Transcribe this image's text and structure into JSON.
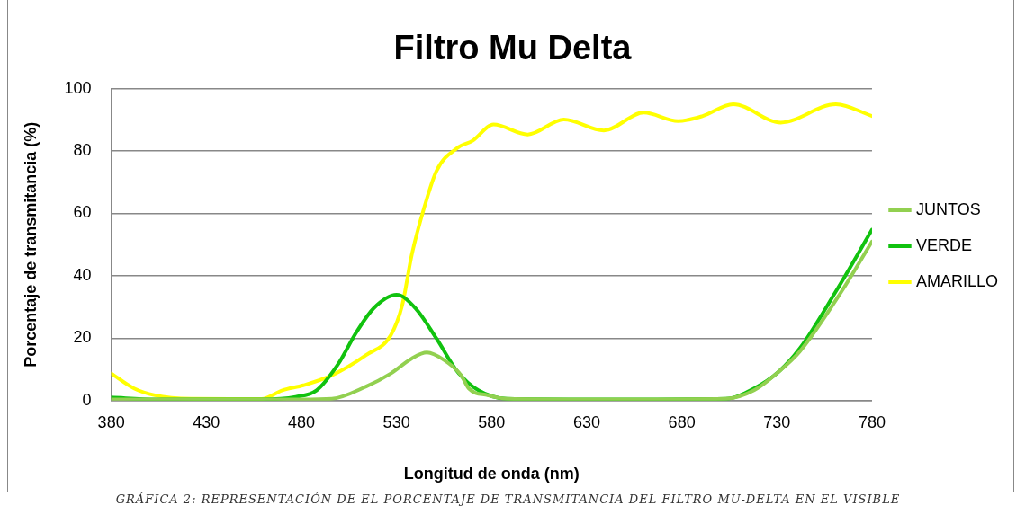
{
  "chart_data": {
    "type": "line",
    "title": "Filtro Mu Delta",
    "xlabel": "Longitud de onda (nm)",
    "ylabel": "Porcentaje de transmitancia (%)",
    "xlim": [
      380,
      780
    ],
    "xticks": [
      380,
      430,
      480,
      530,
      580,
      630,
      680,
      730,
      780
    ],
    "ylim": [
      0,
      100
    ],
    "yticks": [
      0,
      20,
      40,
      60,
      80,
      100
    ],
    "grid": "y",
    "legend": "right",
    "marker": "none",
    "line_style": "solid",
    "series": [
      {
        "name": "JUNTOS",
        "color": "#92d050",
        "x": [
          380,
          403,
          459,
          480,
          496,
          514,
          527,
          538,
          546,
          555,
          564,
          568,
          578,
          588,
          635,
          703,
          718,
          731,
          742,
          764,
          780
        ],
        "values": [
          0.4,
          0.4,
          0.4,
          0.4,
          0.6,
          4.5,
          8.7,
          13.5,
          15.4,
          13,
          8.1,
          3.9,
          1.7,
          0.6,
          0.4,
          0.6,
          3.3,
          9.3,
          15.7,
          35,
          51
        ]
      },
      {
        "name": "VERDE",
        "color": "#11c20f",
        "x": [
          380,
          403,
          459,
          477,
          488,
          499,
          509,
          518,
          530,
          540,
          551,
          562,
          573,
          588,
          635,
          703,
          718,
          731,
          742,
          761,
          780
        ],
        "values": [
          1,
          0.4,
          0.4,
          1.2,
          3.3,
          11.4,
          22,
          29.6,
          33.9,
          29.6,
          19.9,
          9.3,
          3.3,
          0.6,
          0.4,
          0.6,
          3.9,
          9.3,
          16.7,
          35,
          54.8
        ]
      },
      {
        "name": "AMARILLO",
        "color": "#ffff00",
        "x": [
          380,
          392,
          403,
          422,
          459,
          470,
          481,
          496,
          514,
          527,
          533,
          538,
          544,
          551,
          562,
          570,
          581,
          599,
          618,
          639,
          660,
          678,
          691,
          707,
          732,
          761,
          780
        ],
        "values": [
          8.7,
          3.9,
          1.7,
          0.6,
          0.5,
          3.3,
          4.9,
          8.1,
          14.6,
          21,
          30.6,
          46.7,
          60.7,
          73.6,
          81,
          83.3,
          88.5,
          85.3,
          90.1,
          86.6,
          92.3,
          89.6,
          91.2,
          95,
          89.1,
          95,
          91.2
        ]
      }
    ],
    "annotations": [
      "GRÁFICA 2: REPRESENTACIÓN DE EL PORCENTAJE DE TRANSMITANCIA DEL FILTRO MU-DELTA EN EL VISIBLE"
    ]
  }
}
